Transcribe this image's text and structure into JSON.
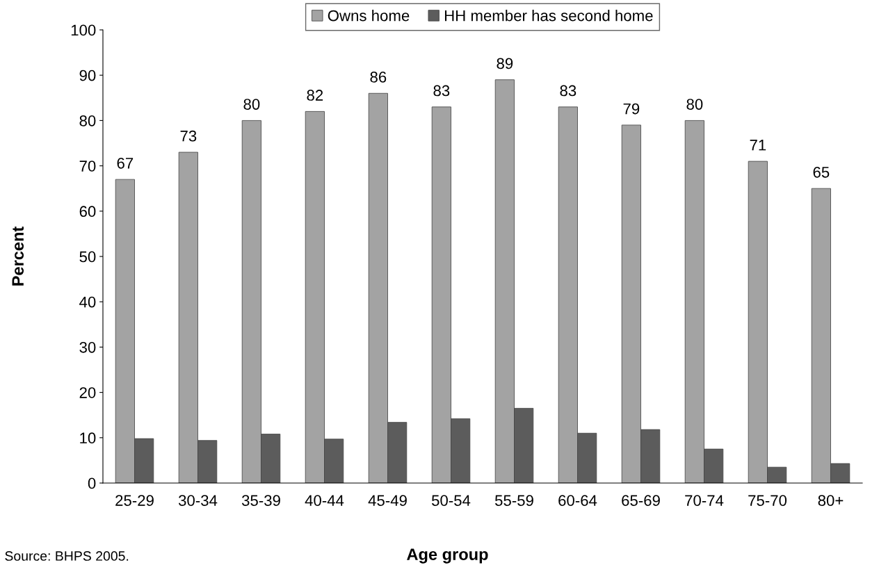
{
  "chart_data": {
    "type": "bar",
    "xlabel": "Age group",
    "ylabel": "Percent",
    "categories": [
      "25-29",
      "30-34",
      "35-39",
      "40-44",
      "45-49",
      "50-54",
      "55-59",
      "60-64",
      "65-69",
      "70-74",
      "75-70",
      "80+"
    ],
    "series": [
      {
        "name": "Owns home",
        "color": "#a3a3a3",
        "values": [
          67,
          73,
          80,
          82,
          86,
          83,
          89,
          83,
          79,
          80,
          71,
          65
        ],
        "value_labels": [
          "67",
          "73",
          "80",
          "82",
          "86",
          "83",
          "89",
          "83",
          "79",
          "80",
          "71",
          "65"
        ]
      },
      {
        "name": "HH member has second home",
        "color": "#5c5c5c",
        "values": [
          9.8,
          9.4,
          10.8,
          9.7,
          13.4,
          14.2,
          16.5,
          11,
          11.8,
          7.5,
          3.5,
          4.3
        ]
      }
    ],
    "ylim": [
      0,
      100
    ],
    "yticks": [
      0,
      10,
      20,
      30,
      40,
      50,
      60,
      70,
      80,
      90,
      100
    ],
    "grid": false,
    "legend": "top",
    "annotations": [
      "Source: BHPS 2005."
    ]
  }
}
